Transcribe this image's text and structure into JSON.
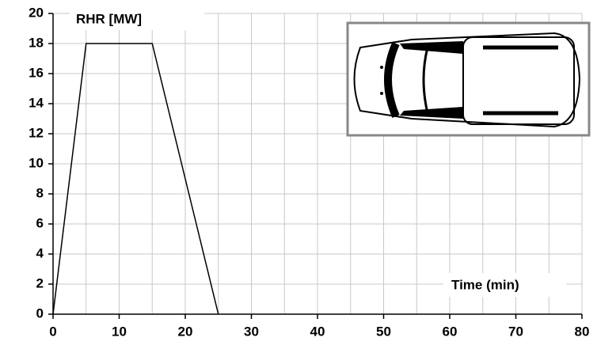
{
  "chart_data": {
    "type": "line",
    "y_label": "RHR [MW]",
    "x_label": "Time (min)",
    "x": [
      0,
      5,
      15,
      25
    ],
    "values": [
      0,
      18,
      18,
      0
    ],
    "color": "#000000",
    "xlim": [
      0,
      80
    ],
    "xticks": [
      0,
      10,
      20,
      30,
      40,
      50,
      60,
      70,
      80
    ],
    "ylim": [
      0,
      20
    ],
    "yticks": [
      0,
      2,
      4,
      6,
      8,
      10,
      12,
      14,
      16,
      18,
      20
    ],
    "grid": true
  }
}
